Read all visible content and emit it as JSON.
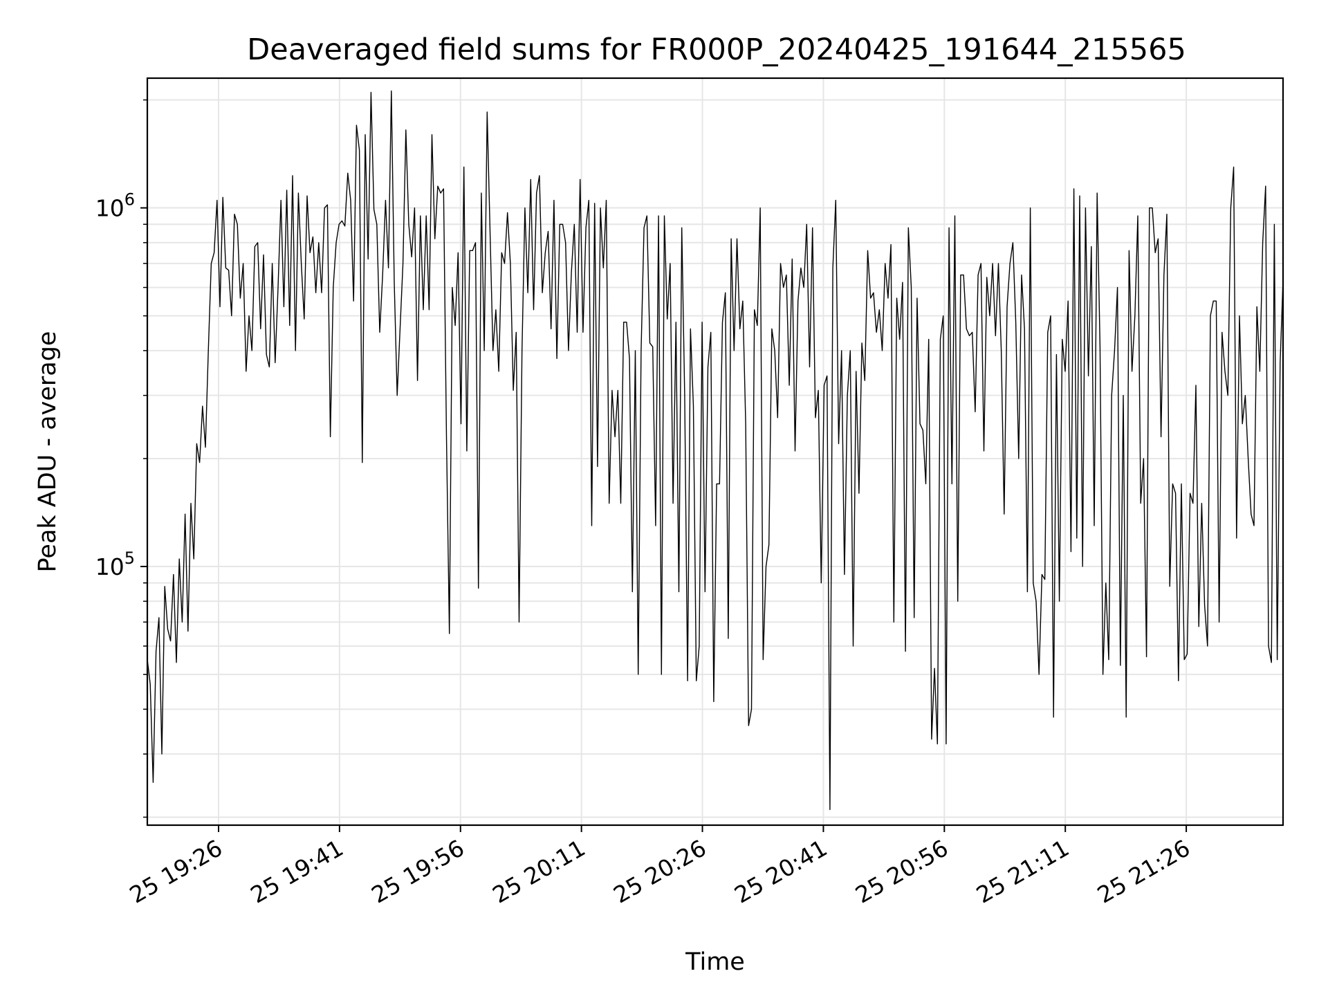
{
  "chart_data": {
    "type": "line",
    "title": "Deaveraged field sums for FR000P_20240425_191644_215565",
    "xlabel": "Time",
    "ylabel": "Peak ADU - average",
    "y_scale": "log",
    "ylim": [
      19000,
      2300000
    ],
    "xlim": [
      "2024-04-25 19:17:10",
      "2024-04-25 21:38:00"
    ],
    "grid": true,
    "line_color": "#000000",
    "x_tick_values": [
      "2024-04-25 19:26",
      "2024-04-25 19:41",
      "2024-04-25 19:56",
      "2024-04-25 20:11",
      "2024-04-25 20:26",
      "2024-04-25 20:41",
      "2024-04-25 20:56",
      "2024-04-25 21:11",
      "2024-04-25 21:26"
    ],
    "x_tick_labels": [
      "25 19:26",
      "25 19:41",
      "25 19:56",
      "25 20:11",
      "25 20:26",
      "25 20:41",
      "25 20:56",
      "25 21:11",
      "25 21:26"
    ],
    "y_ticks": [
      {
        "value": 100000,
        "base": "10",
        "exp": "5"
      },
      {
        "value": 1000000,
        "base": "10",
        "exp": "6"
      }
    ],
    "series": [
      {
        "x_start": "2024-04-25 19:17:10",
        "x_end": "2024-04-25 21:38:00",
        "values": [
          55000,
          47000,
          25000,
          58000,
          72000,
          30000,
          88000,
          67000,
          62000,
          95000,
          54000,
          105000,
          70000,
          140000,
          66000,
          150000,
          105000,
          220000,
          195000,
          280000,
          215000,
          400000,
          700000,
          750000,
          1050000,
          530000,
          1070000,
          680000,
          670000,
          500000,
          960000,
          900000,
          560000,
          700000,
          350000,
          500000,
          400000,
          780000,
          800000,
          460000,
          740000,
          390000,
          360000,
          700000,
          370000,
          600000,
          1050000,
          530000,
          1120000,
          470000,
          1230000,
          400000,
          1100000,
          700000,
          490000,
          1080000,
          750000,
          830000,
          580000,
          800000,
          580000,
          1000000,
          1020000,
          230000,
          600000,
          800000,
          900000,
          920000,
          890000,
          1250000,
          1050000,
          550000,
          1700000,
          1450000,
          195000,
          1600000,
          720000,
          2100000,
          990000,
          900000,
          450000,
          650000,
          1050000,
          680000,
          2120000,
          620000,
          300000,
          460000,
          700000,
          1650000,
          900000,
          730000,
          1000000,
          330000,
          950000,
          520000,
          950000,
          520000,
          1600000,
          820000,
          1150000,
          1100000,
          1130000,
          230000,
          65000,
          600000,
          470000,
          750000,
          250000,
          1300000,
          210000,
          760000,
          760000,
          800000,
          87000,
          1100000,
          400000,
          1850000,
          860000,
          400000,
          520000,
          350000,
          750000,
          700000,
          970000,
          700000,
          310000,
          450000,
          70000,
          400000,
          1000000,
          580000,
          1200000,
          520000,
          1100000,
          1230000,
          580000,
          750000,
          860000,
          460000,
          1050000,
          380000,
          900000,
          900000,
          800000,
          400000,
          660000,
          900000,
          450000,
          1200000,
          450000,
          880000,
          1050000,
          130000,
          1030000,
          190000,
          1000000,
          680000,
          1050000,
          150000,
          310000,
          230000,
          310000,
          150000,
          480000,
          480000,
          380000,
          85000,
          400000,
          50000,
          400000,
          880000,
          950000,
          420000,
          410000,
          130000,
          950000,
          50000,
          950000,
          490000,
          700000,
          150000,
          480000,
          85000,
          880000,
          300000,
          48000,
          460000,
          280000,
          48000,
          60000,
          480000,
          85000,
          360000,
          450000,
          42000,
          170000,
          170000,
          480000,
          580000,
          63000,
          820000,
          400000,
          820000,
          460000,
          550000,
          250000,
          36000,
          40000,
          520000,
          470000,
          1000000,
          55000,
          100000,
          115000,
          460000,
          400000,
          260000,
          700000,
          600000,
          650000,
          320000,
          720000,
          210000,
          550000,
          680000,
          600000,
          900000,
          360000,
          880000,
          260000,
          310000,
          90000,
          320000,
          340000,
          21000,
          680000,
          1050000,
          220000,
          400000,
          95000,
          300000,
          400000,
          60000,
          350000,
          160000,
          420000,
          330000,
          760000,
          560000,
          580000,
          450000,
          520000,
          400000,
          700000,
          560000,
          790000,
          70000,
          560000,
          430000,
          620000,
          58000,
          880000,
          600000,
          72000,
          560000,
          250000,
          240000,
          170000,
          430000,
          33000,
          52000,
          32000,
          430000,
          500000,
          32000,
          880000,
          170000,
          950000,
          80000,
          650000,
          650000,
          460000,
          440000,
          450000,
          270000,
          650000,
          700000,
          210000,
          640000,
          500000,
          700000,
          440000,
          700000,
          400000,
          140000,
          530000,
          700000,
          800000,
          480000,
          200000,
          650000,
          460000,
          85000,
          1000000,
          90000,
          80000,
          50000,
          95000,
          92000,
          450000,
          500000,
          38000,
          390000,
          80000,
          430000,
          350000,
          550000,
          110000,
          1130000,
          120000,
          1080000,
          100000,
          1000000,
          340000,
          780000,
          130000,
          1100000,
          410000,
          50000,
          90000,
          55000,
          300000,
          400000,
          600000,
          53000,
          300000,
          38000,
          760000,
          350000,
          500000,
          950000,
          150000,
          200000,
          56000,
          1000000,
          1000000,
          750000,
          820000,
          230000,
          650000,
          960000,
          88000,
          170000,
          160000,
          48000,
          170000,
          55000,
          57000,
          160000,
          150000,
          320000,
          68000,
          150000,
          78000,
          60000,
          500000,
          550000,
          550000,
          70000,
          450000,
          350000,
          300000,
          1000000,
          1300000,
          120000,
          500000,
          250000,
          300000,
          200000,
          140000,
          130000,
          530000,
          350000,
          800000,
          1150000,
          60000,
          54000,
          900000,
          55000,
          370000,
          630000
        ]
      }
    ]
  }
}
